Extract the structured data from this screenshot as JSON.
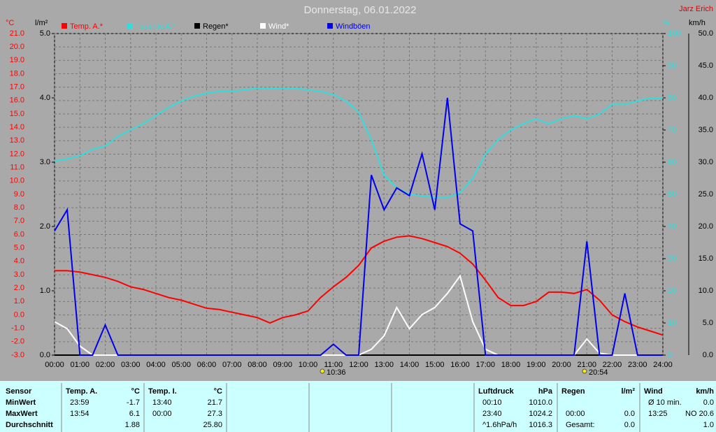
{
  "chart_data": {
    "type": "line",
    "title": "Donnerstag, 06.01.2022",
    "author": "Jarz Erich",
    "units": {
      "y": "°C",
      "y2": "l/m²",
      "y3": "%",
      "y4": "km/h"
    },
    "annotations": [
      "10:36",
      "20:54"
    ],
    "grid": true,
    "x": [
      0,
      0.5,
      1,
      1.5,
      2,
      2.5,
      3,
      3.5,
      4,
      4.5,
      5,
      5.5,
      6,
      6.5,
      7,
      7.5,
      8,
      8.5,
      9,
      9.5,
      10,
      10.5,
      11,
      11.5,
      12,
      12.5,
      13,
      13.5,
      14,
      14.5,
      15,
      15.5,
      16,
      16.5,
      17,
      17.5,
      18,
      18.5,
      19,
      19.5,
      20,
      20.5,
      21,
      21.5,
      22,
      22.5,
      23,
      23.5,
      24
    ],
    "xlim": [
      0,
      24
    ],
    "xticks": [
      {
        "value": 0,
        "label": "00:00"
      },
      {
        "value": 1,
        "label": "01:00"
      },
      {
        "value": 2,
        "label": "02:00"
      },
      {
        "value": 3,
        "label": "03:00"
      },
      {
        "value": 4,
        "label": "04:00"
      },
      {
        "value": 5,
        "label": "05:00"
      },
      {
        "value": 6,
        "label": "06:00"
      },
      {
        "value": 7,
        "label": "07:00"
      },
      {
        "value": 8,
        "label": "08:00"
      },
      {
        "value": 9,
        "label": "09:00"
      },
      {
        "value": 10,
        "label": "10:00"
      },
      {
        "value": 11,
        "label": "11:00"
      },
      {
        "value": 12,
        "label": "12:00"
      },
      {
        "value": 13,
        "label": "13:00"
      },
      {
        "value": 14,
        "label": "14:00"
      },
      {
        "value": 15,
        "label": "15:00"
      },
      {
        "value": 16,
        "label": "16:00"
      },
      {
        "value": 17,
        "label": "17:00"
      },
      {
        "value": 18,
        "label": "18:00"
      },
      {
        "value": 19,
        "label": "19:00"
      },
      {
        "value": 20,
        "label": "20:00"
      },
      {
        "value": 21,
        "label": "21:00"
      },
      {
        "value": 22,
        "label": "22:00"
      },
      {
        "value": 23,
        "label": "23:00"
      },
      {
        "value": 24,
        "label": "24:00"
      }
    ],
    "ylim": [
      -3,
      21
    ],
    "yticks": [
      {
        "value": -3,
        "label": "-3.0"
      },
      {
        "value": -2,
        "label": "-2.0"
      },
      {
        "value": -1,
        "label": "-1.0"
      },
      {
        "value": 0,
        "label": "0.0"
      },
      {
        "value": 1,
        "label": "1.0"
      },
      {
        "value": 2,
        "label": "2.0"
      },
      {
        "value": 3,
        "label": "3.0"
      },
      {
        "value": 4,
        "label": "4.0"
      },
      {
        "value": 5,
        "label": "5.0"
      },
      {
        "value": 6,
        "label": "6.0"
      },
      {
        "value": 7,
        "label": "7.0"
      },
      {
        "value": 8,
        "label": "8.0"
      },
      {
        "value": 9,
        "label": "9.0"
      },
      {
        "value": 10,
        "label": "10.0"
      },
      {
        "value": 11,
        "label": "11.0"
      },
      {
        "value": 12,
        "label": "12.0"
      },
      {
        "value": 13,
        "label": "13.0"
      },
      {
        "value": 14,
        "label": "14.0"
      },
      {
        "value": 15,
        "label": "15.0"
      },
      {
        "value": 16,
        "label": "16.0"
      },
      {
        "value": 17,
        "label": "17.0"
      },
      {
        "value": 18,
        "label": "18.0"
      },
      {
        "value": 19,
        "label": "19.0"
      },
      {
        "value": 20,
        "label": "20.0"
      },
      {
        "value": 21,
        "label": "21.0"
      }
    ],
    "y2lim": [
      0,
      5
    ],
    "y2ticks": [
      {
        "value": 0,
        "label": "0.0"
      },
      {
        "value": 1,
        "label": "1.0"
      },
      {
        "value": 2,
        "label": "2.0"
      },
      {
        "value": 3,
        "label": "3.0"
      },
      {
        "value": 4,
        "label": "4.0"
      },
      {
        "value": 5,
        "label": "5.0"
      }
    ],
    "y3lim": [
      0,
      100
    ],
    "y3ticks": [
      0,
      10,
      20,
      30,
      40,
      50,
      60,
      70,
      80,
      90,
      100
    ],
    "y4lim": [
      0,
      50
    ],
    "y4ticks": [
      {
        "value": 0,
        "label": "0.0"
      },
      {
        "value": 5,
        "label": "5.0"
      },
      {
        "value": 10,
        "label": "10.0"
      },
      {
        "value": 15,
        "label": "15.0"
      },
      {
        "value": 20,
        "label": "20.0"
      },
      {
        "value": 25,
        "label": "25.0"
      },
      {
        "value": 30,
        "label": "30.0"
      },
      {
        "value": 35,
        "label": "35.0"
      },
      {
        "value": 40,
        "label": "40.0"
      },
      {
        "value": 45,
        "label": "45.0"
      },
      {
        "value": 50,
        "label": "50.0"
      }
    ],
    "series": [
      {
        "name": "Temp. A.*",
        "color": "#ff0000",
        "axis": "y",
        "values": [
          3.3,
          3.3,
          3.2,
          3.0,
          2.8,
          2.5,
          2.1,
          1.9,
          1.6,
          1.3,
          1.1,
          0.8,
          0.5,
          0.4,
          0.2,
          0.0,
          -0.2,
          -0.6,
          -0.2,
          0.0,
          0.3,
          1.3,
          2.1,
          2.8,
          3.7,
          5.0,
          5.5,
          5.8,
          5.9,
          5.7,
          5.4,
          5.1,
          4.6,
          3.8,
          2.6,
          1.3,
          0.7,
          0.7,
          1.0,
          1.7,
          1.7,
          1.6,
          1.9,
          1.1,
          0.0,
          -0.5,
          -0.9,
          -1.2,
          -1.5
        ]
      },
      {
        "name": "Feuchte A.*",
        "color": "#33dddd",
        "axis": "y3",
        "values": [
          60.4,
          61,
          62,
          64,
          65,
          68,
          70,
          72,
          74.5,
          77,
          79,
          80.5,
          81.5,
          82,
          82,
          82.5,
          83,
          83,
          83,
          83,
          82.5,
          82,
          81,
          79,
          75.5,
          67,
          56,
          52,
          50,
          49.5,
          49,
          49,
          50.5,
          55,
          62.5,
          67,
          70,
          72,
          73.5,
          72,
          73.5,
          74.5,
          73.5,
          75,
          78,
          78,
          79,
          80,
          80
        ]
      },
      {
        "name": "Regen*",
        "color": "#000000",
        "axis": "y2",
        "values": [
          0,
          0,
          0,
          0,
          0,
          0,
          0,
          0,
          0,
          0,
          0,
          0,
          0,
          0,
          0,
          0,
          0,
          0,
          0,
          0,
          0,
          0,
          0,
          0,
          0,
          0,
          0,
          0,
          0,
          0,
          0,
          0,
          0,
          0,
          0,
          0,
          0,
          0,
          0,
          0,
          0,
          0,
          0,
          0,
          0,
          0,
          0,
          0,
          0
        ]
      },
      {
        "name": "Wind*",
        "color": "#ffffff",
        "axis": "y4",
        "values": [
          5.2,
          4.1,
          1.4,
          0,
          0,
          0,
          0,
          0,
          0,
          0,
          0,
          0,
          0,
          0,
          0,
          0,
          0,
          0,
          0,
          0,
          0,
          0,
          0,
          0,
          0,
          0.9,
          3.0,
          7.4,
          4.1,
          6.3,
          7.4,
          9.6,
          12.3,
          5.2,
          0.9,
          0,
          0,
          0,
          0,
          0,
          0,
          0,
          2.5,
          0.3,
          0,
          0,
          0,
          0,
          0
        ]
      },
      {
        "name": "Windböen",
        "color": "#0000ee",
        "axis": "y4",
        "values": [
          19.3,
          22.6,
          0,
          0,
          4.7,
          0,
          0,
          0,
          0,
          0,
          0,
          0,
          0,
          0,
          0,
          0,
          0,
          0,
          0,
          0,
          0,
          0,
          1.7,
          0,
          0,
          28,
          22.6,
          26,
          24.8,
          31.3,
          22.6,
          40,
          20.4,
          19.3,
          0,
          0,
          0,
          0,
          0,
          0,
          0,
          0,
          17.7,
          0,
          0,
          9.6,
          0,
          0,
          0
        ]
      }
    ]
  },
  "table": {
    "sensor": {
      "header": "Sensor",
      "rows": [
        "MinWert",
        "MaxWert",
        "Durchschnitt"
      ]
    },
    "columns": [
      {
        "header": "Temp. A.",
        "unit": "°C",
        "cells": [
          [
            "23:59",
            "-1.7"
          ],
          [
            "13:54",
            "6.1"
          ],
          [
            null,
            "1.88"
          ]
        ]
      },
      {
        "header": "Temp. I.",
        "unit": "°C",
        "cells": [
          [
            "13:40",
            "21.7"
          ],
          [
            "00:00",
            "27.3"
          ],
          [
            null,
            "25.80"
          ]
        ]
      },
      {
        "header": "Luftdruck",
        "unit": "hPa",
        "cells": [
          [
            "00:10",
            "1010.0"
          ],
          [
            "23:40",
            "1024.2"
          ],
          [
            "^1.6hPa/h",
            "1016.3"
          ]
        ]
      },
      {
        "header": "Regen",
        "unit": "l/m²",
        "cells": [
          [
            null,
            null
          ],
          [
            "00:00",
            "0.0"
          ],
          [
            "Gesamt:",
            "0.0"
          ]
        ]
      },
      {
        "header": "Wind",
        "unit": "km/h",
        "cells": [
          [
            "Ø 10 min.",
            "0.0"
          ],
          [
            "13:25",
            "NO 20.6"
          ],
          [
            null,
            "1.0"
          ]
        ]
      }
    ]
  }
}
